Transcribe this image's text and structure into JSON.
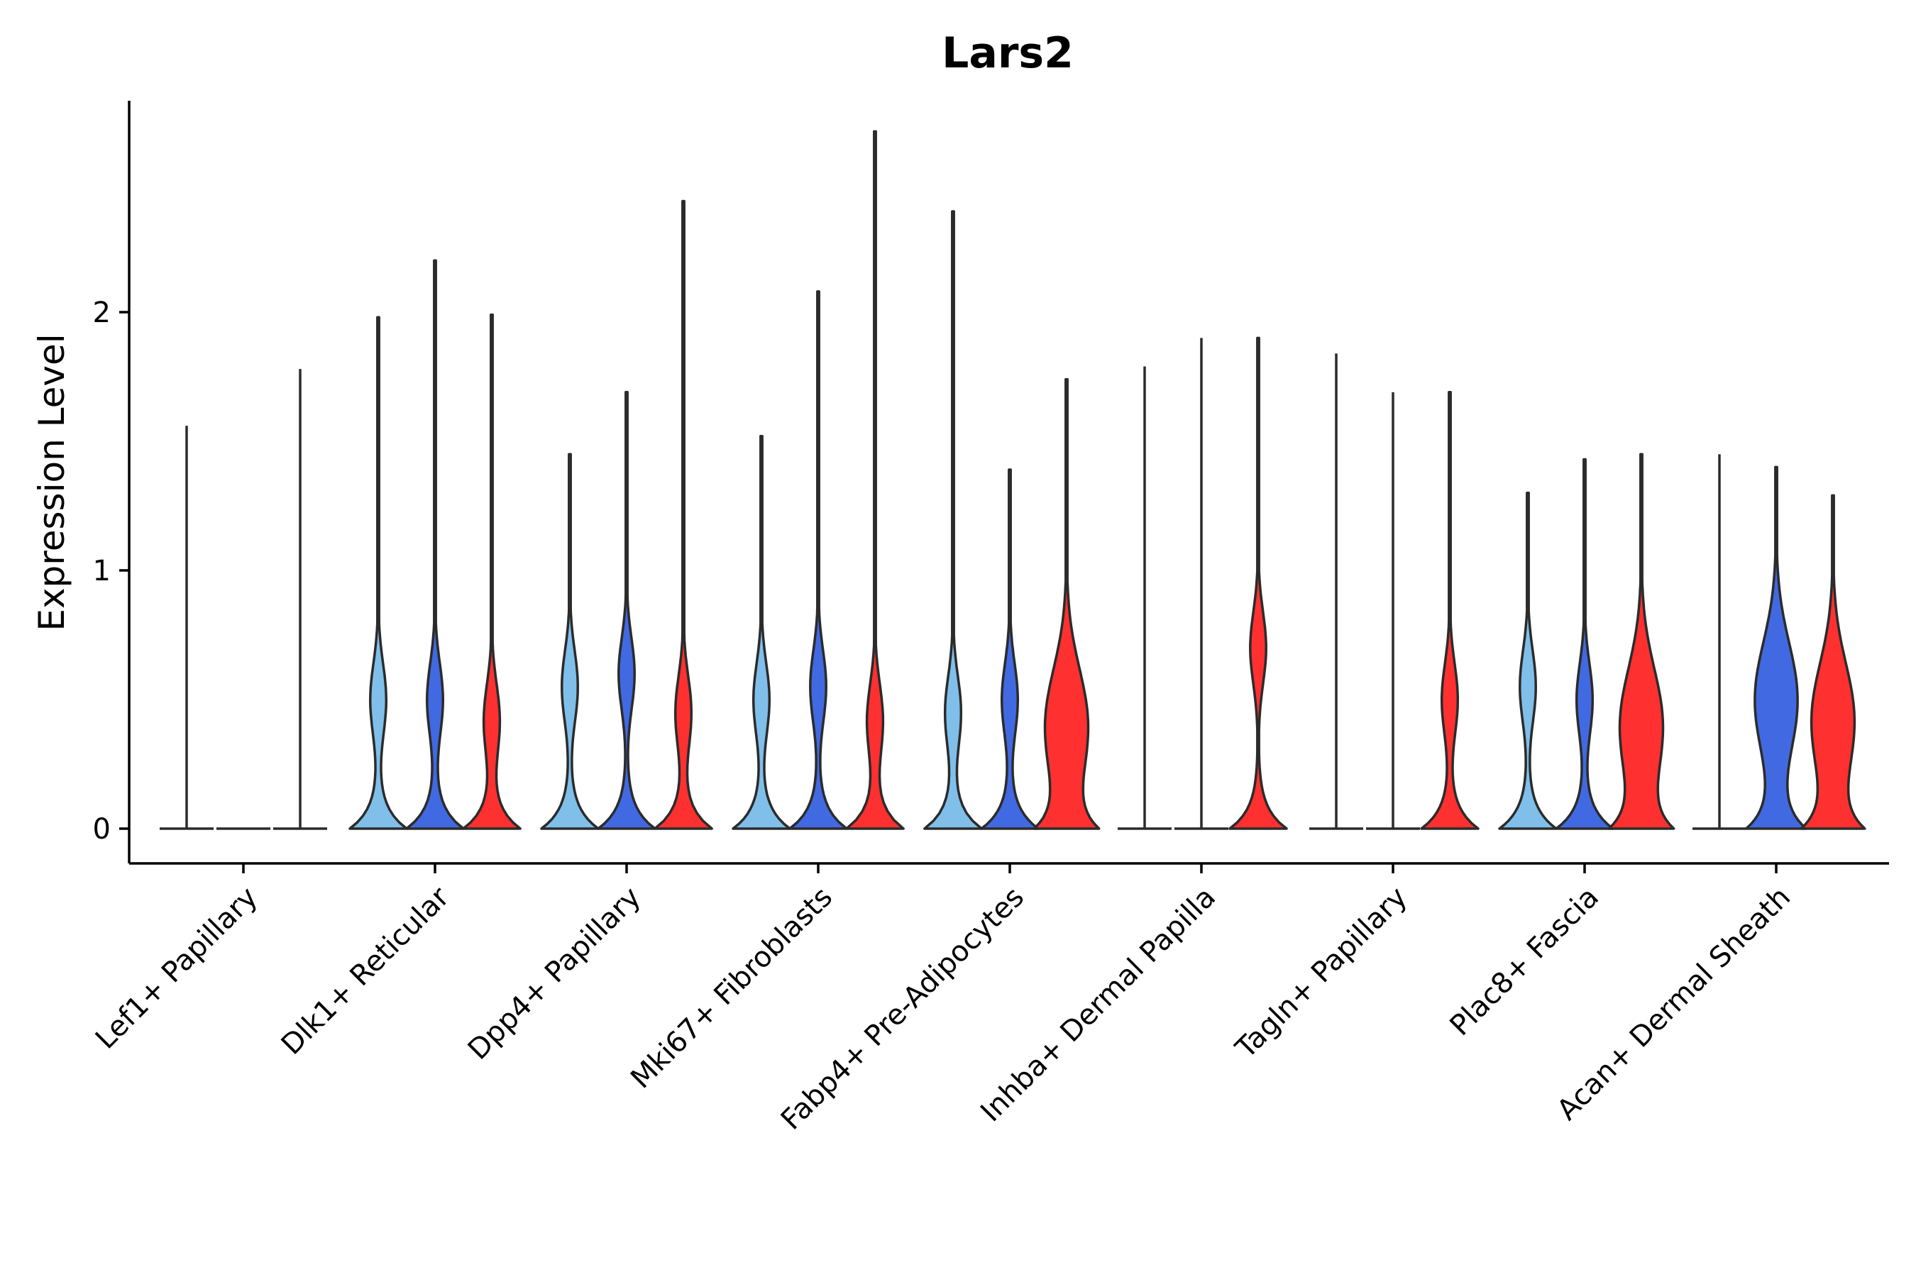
{
  "chart_data": {
    "type": "violin",
    "title": "Lars2",
    "xlabel": "",
    "ylabel": "Expression Level",
    "ylim": [
      -0.13,
      2.8
    ],
    "yticks": [
      0,
      1,
      2
    ],
    "legend": "none",
    "grid": false,
    "series_colors": {
      "group1": "#7fbfea",
      "group2": "#4169e1",
      "group3": "#ff3030"
    },
    "categories": [
      "Lef1+ Papillary",
      "Dlk1+ Reticular",
      "Dpp4+ Papillary",
      "Mki67+ Fibroblasts",
      "Fabp4+ Pre-Adipocytes",
      "Inhba+ Dermal Papilla",
      "Tagln+ Papillary",
      "Plac8+ Fascia",
      "Acan+ Dermal Sheath"
    ],
    "violins": [
      [
        {
          "series": "group1",
          "max": 1.56,
          "mode": 0.0,
          "profile": "flat"
        },
        {
          "series": "group2",
          "max": 0.0,
          "mode": 0.0,
          "profile": "flat"
        },
        {
          "series": "group3",
          "max": 1.78,
          "mode": 0.0,
          "profile": "flat"
        }
      ],
      [
        {
          "series": "group1",
          "max": 1.98,
          "mode": 0.5,
          "profile": "bimodal"
        },
        {
          "series": "group2",
          "max": 2.2,
          "mode": 0.5,
          "profile": "bimodal"
        },
        {
          "series": "group3",
          "max": 1.99,
          "mode": 0.42,
          "profile": "bimodal"
        }
      ],
      [
        {
          "series": "group1",
          "max": 1.45,
          "mode": 0.55,
          "profile": "bimodal"
        },
        {
          "series": "group2",
          "max": 1.69,
          "mode": 0.6,
          "profile": "bimodal"
        },
        {
          "series": "group3",
          "max": 2.43,
          "mode": 0.45,
          "profile": "bimodal"
        }
      ],
      [
        {
          "series": "group1",
          "max": 1.52,
          "mode": 0.5,
          "profile": "bimodal"
        },
        {
          "series": "group2",
          "max": 2.08,
          "mode": 0.55,
          "profile": "bimodal"
        },
        {
          "series": "group3",
          "max": 2.7,
          "mode": 0.42,
          "profile": "bimodal"
        }
      ],
      [
        {
          "series": "group1",
          "max": 2.39,
          "mode": 0.45,
          "profile": "bimodal"
        },
        {
          "series": "group2",
          "max": 1.39,
          "mode": 0.5,
          "profile": "bimodal"
        },
        {
          "series": "group3",
          "max": 1.74,
          "mode": 0.4,
          "profile": "wide"
        }
      ],
      [
        {
          "series": "group1",
          "max": 1.79,
          "mode": 0.0,
          "profile": "flat"
        },
        {
          "series": "group2",
          "max": 1.9,
          "mode": 0.0,
          "profile": "flat"
        },
        {
          "series": "group3",
          "max": 1.9,
          "mode": 0.7,
          "profile": "bimodal"
        }
      ],
      [
        {
          "series": "group1",
          "max": 1.84,
          "mode": 0.0,
          "profile": "flat"
        },
        {
          "series": "group2",
          "max": 1.69,
          "mode": 0.0,
          "profile": "flat"
        },
        {
          "series": "group3",
          "max": 1.69,
          "mode": 0.5,
          "profile": "bimodal"
        }
      ],
      [
        {
          "series": "group1",
          "max": 1.3,
          "mode": 0.55,
          "profile": "bimodal"
        },
        {
          "series": "group2",
          "max": 1.43,
          "mode": 0.5,
          "profile": "bimodal"
        },
        {
          "series": "group3",
          "max": 1.45,
          "mode": 0.4,
          "profile": "wide"
        }
      ],
      [
        {
          "series": "group1",
          "max": 1.45,
          "mode": 0.0,
          "profile": "flat"
        },
        {
          "series": "group2",
          "max": 1.4,
          "mode": 0.5,
          "profile": "wide"
        },
        {
          "series": "group3",
          "max": 1.29,
          "mode": 0.42,
          "profile": "wide"
        }
      ]
    ]
  }
}
